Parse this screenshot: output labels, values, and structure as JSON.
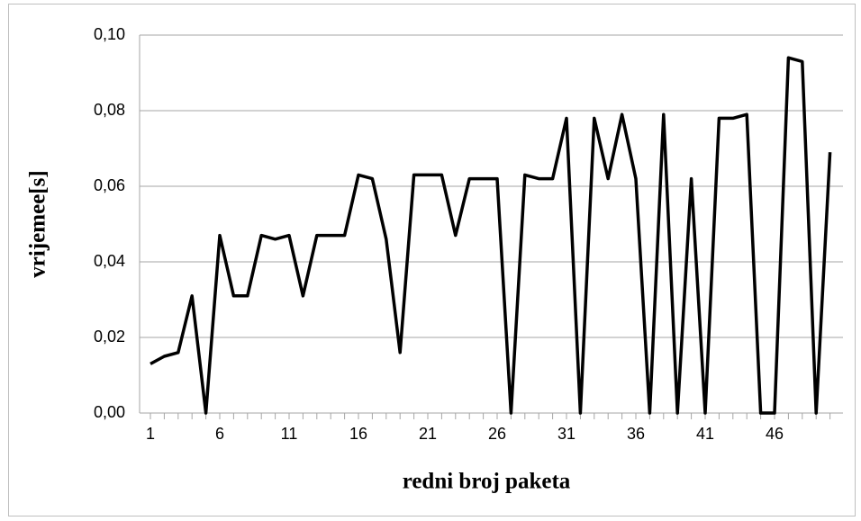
{
  "chart_data": {
    "type": "line",
    "x_label": "redni broj paketa",
    "y_label": "vrijemee[s]",
    "categories": [
      "1",
      null,
      null,
      null,
      null,
      "6",
      null,
      null,
      null,
      null,
      "11",
      null,
      null,
      null,
      null,
      "16",
      null,
      null,
      null,
      null,
      "21",
      null,
      null,
      null,
      null,
      "26",
      null,
      null,
      null,
      null,
      "31",
      null,
      null,
      null,
      null,
      "36",
      null,
      null,
      null,
      null,
      "41",
      null,
      null,
      null,
      null,
      "46",
      null,
      null,
      null,
      null
    ],
    "series": [
      {
        "name": "vrijemee[s]",
        "color": "#000000",
        "values": [
          0.013,
          0.015,
          0.016,
          0.031,
          0,
          0.047,
          0.031,
          0.031,
          0.047,
          0.046,
          0.047,
          0.031,
          0.047,
          0.047,
          0.047,
          0.063,
          0.062,
          0.046,
          0.016,
          0.063,
          0.063,
          0.063,
          0.047,
          0.062,
          0.062,
          0.062,
          0,
          0.063,
          0.062,
          0.062,
          0.078,
          0,
          0.078,
          0.062,
          0.079,
          0.062,
          0,
          0.079,
          0,
          0.062,
          0,
          0.078,
          0.078,
          0.079,
          0,
          0,
          0.094,
          0.093,
          0,
          0.069
        ]
      }
    ],
    "ylim": [
      0,
      0.1
    ],
    "yticks": [
      {
        "value": 0,
        "label": "0,00"
      },
      {
        "value": 0.02,
        "label": "0,02"
      },
      {
        "value": 0.04,
        "label": "0,04"
      },
      {
        "value": 0.06,
        "label": "0,06"
      },
      {
        "value": 0.08,
        "label": "0,08"
      },
      {
        "value": 0.1,
        "label": "0,10"
      }
    ],
    "grid": true
  }
}
